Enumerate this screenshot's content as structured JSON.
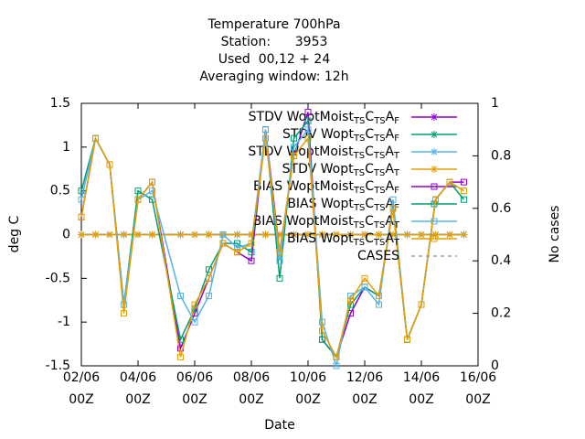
{
  "chart_data": {
    "type": "line",
    "title": [
      "Temperature 700hPa",
      "Station:      3953",
      "Used  00,12 + 24",
      "Averaging window: 12h"
    ],
    "xlabel": "Date",
    "ylabel": "deg C",
    "y2label": "No cases",
    "x": [
      "02/06 00Z",
      "02/06 12Z",
      "03/06 00Z",
      "03/06 12Z",
      "04/06 00Z",
      "04/06 12Z",
      "05/06 12Z",
      "06/06 00Z",
      "06/06 12Z",
      "07/06 00Z",
      "07/06 12Z",
      "08/06 00Z",
      "08/06 12Z",
      "09/06 00Z",
      "09/06 12Z",
      "10/06 00Z",
      "10/06 12Z",
      "11/06 00Z",
      "11/06 12Z",
      "12/06 00Z",
      "12/06 12Z",
      "13/06 00Z",
      "13/06 12Z",
      "14/06 00Z",
      "14/06 12Z",
      "15/06 00Z",
      "15/06 12Z"
    ],
    "xticks": [
      {
        "date": "02/06",
        "hour": "00Z"
      },
      {
        "date": "04/06",
        "hour": "00Z"
      },
      {
        "date": "06/06",
        "hour": "00Z"
      },
      {
        "date": "08/06",
        "hour": "00Z"
      },
      {
        "date": "10/06",
        "hour": "00Z"
      },
      {
        "date": "12/06",
        "hour": "00Z"
      },
      {
        "date": "14/06",
        "hour": "00Z"
      },
      {
        "date": "16/06",
        "hour": "00Z"
      }
    ],
    "ylim": [
      -1.5,
      1.5
    ],
    "yticks": [
      -1.5,
      -1,
      -0.5,
      0,
      0.5,
      1,
      1.5
    ],
    "y2lim": [
      0,
      1
    ],
    "y2ticks": [
      0,
      0.2,
      0.4,
      0.6,
      0.8,
      1
    ],
    "series": [
      {
        "label": [
          "STDV WoptMoist",
          "TS",
          "C",
          "TS",
          "A",
          "F"
        ],
        "color": "#9400d3",
        "marker": "star",
        "values": [
          0,
          0,
          0,
          0,
          0,
          0,
          0,
          0,
          0,
          0,
          0,
          0,
          0,
          0,
          0,
          0,
          0,
          0,
          0,
          0,
          0,
          0,
          0,
          0,
          0,
          0,
          0
        ]
      },
      {
        "label": [
          "STDV Wopt",
          "TS",
          "C",
          "TS",
          "A",
          "F"
        ],
        "color": "#009e73",
        "marker": "star",
        "values": [
          0,
          0,
          0,
          0,
          0,
          0,
          0,
          0,
          0,
          0,
          0,
          0,
          0,
          0,
          0,
          0,
          0,
          0,
          0,
          0,
          0,
          0,
          0,
          0,
          0,
          0,
          0
        ]
      },
      {
        "label": [
          "STDV WoptMoist",
          "TS",
          "C",
          "TS",
          "A",
          "T"
        ],
        "color": "#56b4e9",
        "marker": "star",
        "values": [
          0,
          0,
          0,
          0,
          0,
          0,
          0,
          0,
          0,
          0,
          0,
          0,
          0,
          0,
          0,
          0,
          0,
          0,
          0,
          0,
          0,
          0,
          0,
          0,
          0,
          0,
          0
        ]
      },
      {
        "label": [
          "STDV Wopt",
          "TS",
          "C",
          "TS",
          "A",
          "T"
        ],
        "color": "#e69f00",
        "marker": "star",
        "values": [
          0,
          0,
          0,
          0,
          0,
          0,
          0,
          0,
          0,
          0,
          0,
          0,
          0,
          0,
          0,
          0,
          0,
          0,
          0,
          0,
          0,
          0,
          0,
          0,
          0,
          0,
          0
        ]
      },
      {
        "label": [
          "BIAS WoptMoist",
          "TS",
          "C",
          "TS",
          "A",
          "F"
        ],
        "color": "#9400d3",
        "marker": "square",
        "values": [
          0.2,
          1.1,
          0.8,
          -0.8,
          0.4,
          0.6,
          -1.3,
          -0.9,
          -0.5,
          -0.1,
          -0.2,
          -0.3,
          1.2,
          -0.2,
          0.9,
          1.4,
          -1.2,
          -1.4,
          -0.9,
          -0.6,
          -0.7,
          0.3,
          -1.2,
          -0.8,
          0.4,
          0.6,
          0.6
        ]
      },
      {
        "label": [
          "BIAS Wopt",
          "TS",
          "C",
          "TS",
          "A",
          "F"
        ],
        "color": "#009e73",
        "marker": "square",
        "values": [
          0.5,
          1.1,
          0.8,
          -0.8,
          0.5,
          0.4,
          -1.2,
          -0.85,
          -0.4,
          -0.1,
          -0.1,
          -0.2,
          1.2,
          -0.5,
          1.1,
          1.3,
          -1.2,
          -1.4,
          -0.8,
          -0.6,
          -0.7,
          0.3,
          -1.2,
          -0.8,
          0.4,
          0.6,
          0.4
        ]
      },
      {
        "label": [
          "BIAS WoptMoist",
          "TS",
          "C",
          "TS",
          "A",
          "T"
        ],
        "color": "#56b4e9",
        "marker": "square",
        "values": [
          0.4,
          1.1,
          0.8,
          -0.8,
          0.4,
          0.5,
          -0.7,
          -1.0,
          -0.7,
          0,
          -0.15,
          -0.1,
          1.2,
          -0.3,
          1.0,
          1.2,
          -1.0,
          -1.5,
          -0.7,
          -0.6,
          -0.8,
          0.4,
          -1.2,
          -0.8,
          0.4,
          0.6,
          0.5
        ]
      },
      {
        "label": [
          "BIAS Wopt",
          "TS",
          "C",
          "TS",
          "A",
          "T"
        ],
        "color": "#e69f00",
        "marker": "square",
        "values": [
          0.2,
          1.1,
          0.8,
          -0.9,
          0.4,
          0.6,
          -1.4,
          -0.8,
          -0.5,
          -0.1,
          -0.2,
          -0.1,
          1.1,
          -0.2,
          0.9,
          1.1,
          -1.1,
          -1.4,
          -0.75,
          -0.5,
          -0.7,
          0.3,
          -1.2,
          -0.8,
          0.4,
          0.6,
          0.5
        ]
      },
      {
        "label": [
          "CASES"
        ],
        "color": "#a0a0a0",
        "marker": "none",
        "dashed": true,
        "axis": "y2",
        "values": [
          null,
          null,
          null,
          null,
          null,
          null,
          null,
          null,
          null,
          null,
          null,
          null,
          null,
          null,
          null,
          null,
          null,
          null,
          null,
          null,
          null,
          null,
          null,
          null,
          null,
          null,
          null
        ]
      }
    ]
  }
}
